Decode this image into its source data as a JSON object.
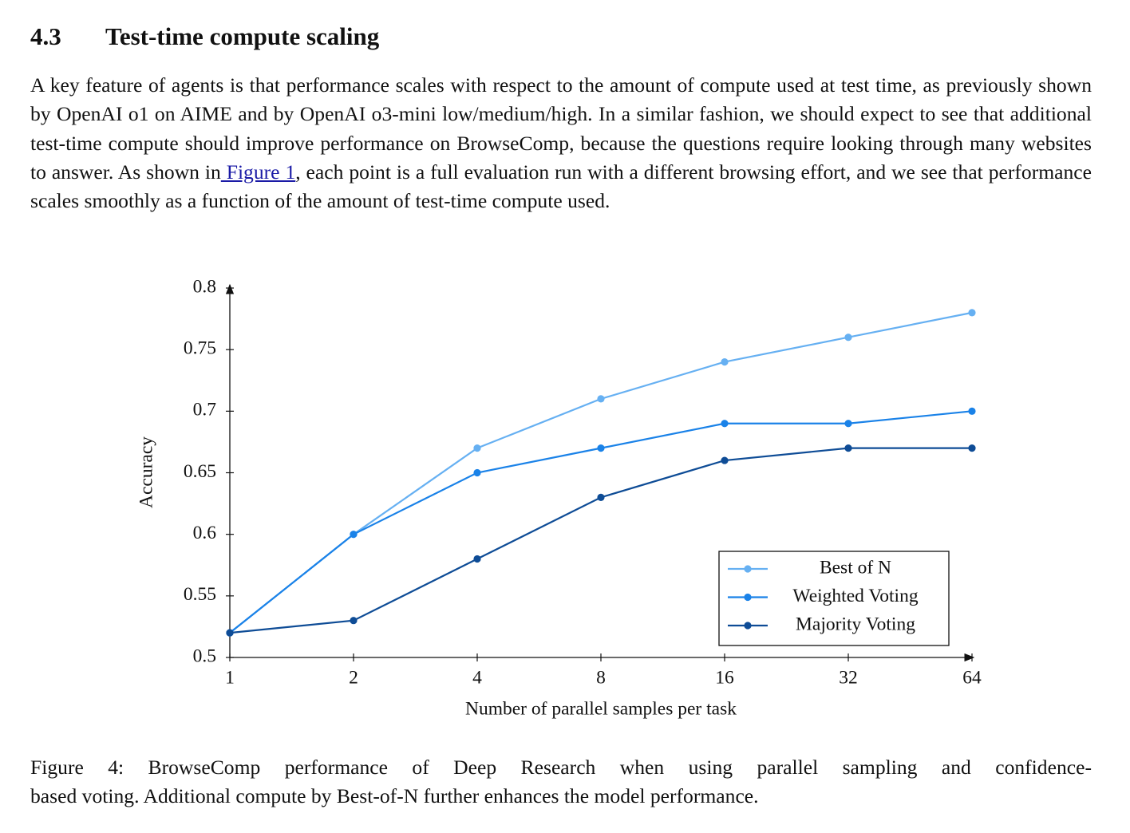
{
  "section": {
    "number": "4.3",
    "title": "Test-time compute scaling"
  },
  "paragraph": {
    "before": "A key feature of agents is that performance scales with respect to the amount of compute used at test time, as previously shown by OpenAI o1 on AIME and by OpenAI o3-mini low/medium/high. In a similar fashion, we should expect to see that additional test-time compute should improve performance on BrowseComp, because the questions require looking through many websites to answer. As shown in",
    "link": " Figure 1",
    "after": ", each point is a full evaluation run with a different browsing effort, and we see that performance scales smoothly as a function of the amount of test-time compute used."
  },
  "chart_data": {
    "type": "line",
    "x_label": "Number of parallel samples per task",
    "y_label": "Accuracy",
    "categories": [
      "1",
      "2",
      "4",
      "8",
      "16",
      "32",
      "64"
    ],
    "series": [
      {
        "name": "Best of N",
        "color": "#66b0f2",
        "values": [
          0.52,
          0.6,
          0.67,
          0.71,
          0.74,
          0.76,
          0.78
        ]
      },
      {
        "name": "Weighted Voting",
        "color": "#1a82e8",
        "values": [
          0.52,
          0.6,
          0.65,
          0.67,
          0.69,
          0.69,
          0.7
        ]
      },
      {
        "name": "Majority Voting",
        "color": "#0e4c96",
        "values": [
          0.52,
          0.53,
          0.58,
          0.63,
          0.66,
          0.67,
          0.67
        ]
      }
    ],
    "ylim": [
      0.5,
      0.8
    ],
    "yticks": [
      0.5,
      0.55,
      0.6,
      0.65,
      0.7,
      0.75,
      0.8
    ],
    "legend": "lower right"
  },
  "caption": {
    "lines": [
      "Figure 4: BrowseComp performance of Deep Research when using parallel sampling and confidence-",
      "based voting. Additional compute by Best-of-N further enhances the model performance."
    ]
  }
}
